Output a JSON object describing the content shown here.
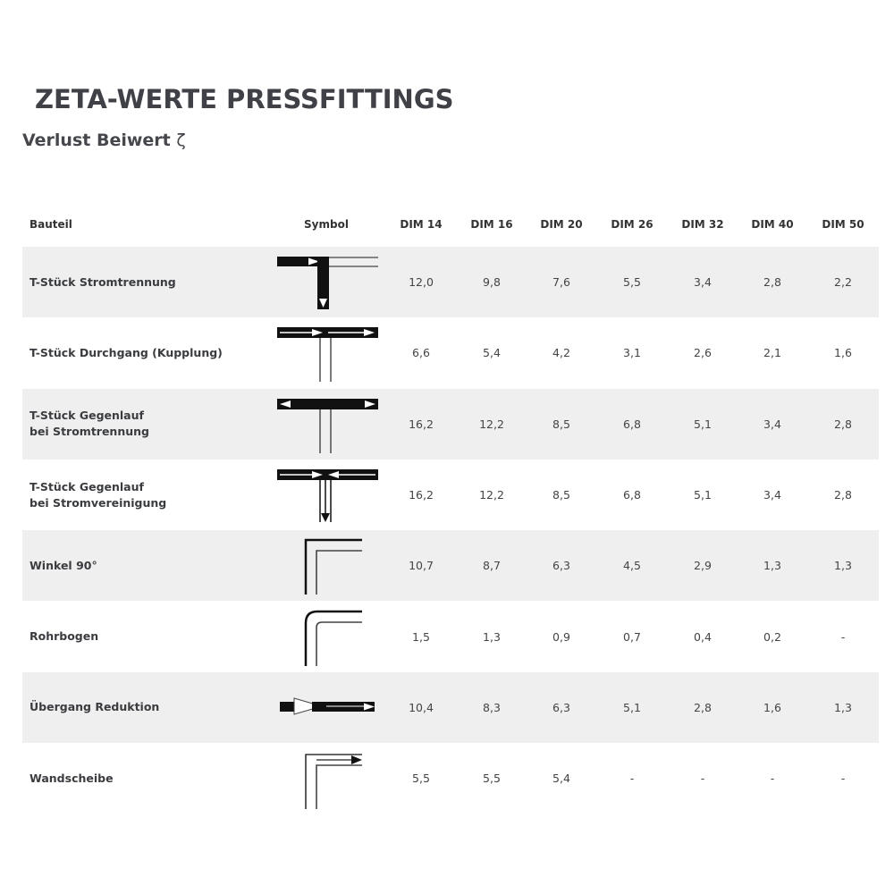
{
  "title": "ZETA-WERTE PRESSFITTINGS",
  "subtitle": "Verlust Beiwert",
  "subtitle_symbol": "ζ",
  "columns": [
    "Bauteil",
    "Symbol",
    "DIM 14",
    "DIM 16",
    "DIM 20",
    "DIM 26",
    "DIM 32",
    "DIM 40",
    "DIM 50"
  ],
  "rows": [
    {
      "name": "T-Stück Stromtrennung",
      "symbol": "tee-split-icon",
      "values": [
        "12,0",
        "9,8",
        "7,6",
        "5,5",
        "3,4",
        "2,8",
        "2,2"
      ]
    },
    {
      "name": "T-Stück Durchgang (Kupplung)",
      "symbol": "tee-through-icon",
      "values": [
        "6,6",
        "5,4",
        "4,2",
        "3,1",
        "2,6",
        "2,1",
        "1,6"
      ]
    },
    {
      "name": "T-Stück Gegenlauf\nbei Stromtrennung",
      "symbol": "tee-counter-split-icon",
      "values": [
        "16,2",
        "12,2",
        "8,5",
        "6,8",
        "5,1",
        "3,4",
        "2,8"
      ]
    },
    {
      "name": "T-Stück Gegenlauf\nbei Stromvereinigung",
      "symbol": "tee-counter-merge-icon",
      "values": [
        "16,2",
        "12,2",
        "8,5",
        "6,8",
        "5,1",
        "3,4",
        "2,8"
      ]
    },
    {
      "name": "Winkel 90°",
      "symbol": "elbow-90-icon",
      "values": [
        "10,7",
        "8,7",
        "6,3",
        "4,5",
        "2,9",
        "1,3",
        "1,3"
      ]
    },
    {
      "name": "Rohrbogen",
      "symbol": "pipe-bend-icon",
      "values": [
        "1,5",
        "1,3",
        "0,9",
        "0,7",
        "0,4",
        "0,2",
        "-"
      ]
    },
    {
      "name": "Übergang Reduktion",
      "symbol": "reducer-icon",
      "values": [
        "10,4",
        "8,3",
        "6,3",
        "5,1",
        "2,8",
        "1,6",
        "1,3"
      ]
    },
    {
      "name": "Wandscheibe",
      "symbol": "wall-plate-icon",
      "values": [
        "5,5",
        "5,5",
        "5,4",
        "-",
        "-",
        "-",
        "-"
      ]
    }
  ]
}
